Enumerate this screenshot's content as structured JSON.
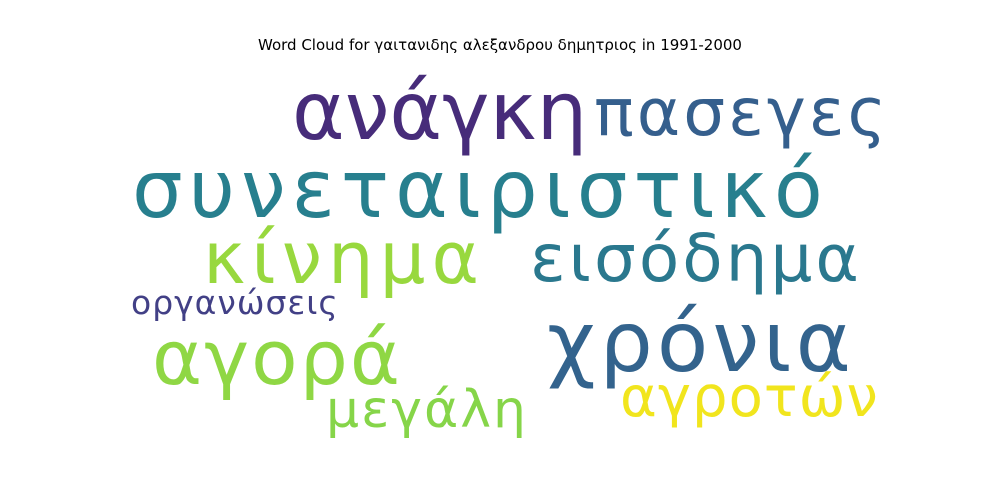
{
  "chart_data": {
    "type": "wordcloud",
    "title": "Word Cloud for γαιτανιδης αλεξανδρου δημητριος in 1991-2000",
    "words": [
      {
        "text": "ανάγκη",
        "color": "#472c7a"
      },
      {
        "text": "πασεγες",
        "color": "#355f8d"
      },
      {
        "text": "συνεταιριστικό",
        "color": "#277f8e"
      },
      {
        "text": "κίνημα",
        "color": "#98d83e"
      },
      {
        "text": "εισόδημα",
        "color": "#2a788e"
      },
      {
        "text": "οργανώσεις",
        "color": "#424086"
      },
      {
        "text": "χρόνια",
        "color": "#33638d"
      },
      {
        "text": "αγορά",
        "color": "#8fd744"
      },
      {
        "text": "αγροτών",
        "color": "#f1e51d"
      },
      {
        "text": "μεγάλη",
        "color": "#86d549"
      }
    ]
  }
}
